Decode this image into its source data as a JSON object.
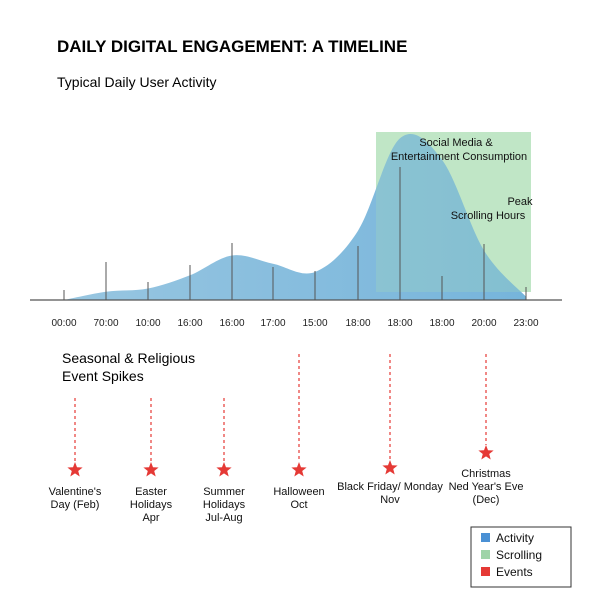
{
  "chart_data": {
    "type": "area",
    "title": "DAILY DIGITAL ENGAGEMENT: A TIMELINE",
    "subtitle": "Typical Daily User Activity",
    "x_tick_labels": [
      "00:00",
      "70:00",
      "10:00",
      "16:00",
      "16:00",
      "17:00",
      "15:00",
      "18:00",
      "18:00",
      "18:00",
      "20:00",
      "23:00"
    ],
    "activity_series": {
      "name": "Activity",
      "values": [
        0.0,
        0.05,
        0.07,
        0.15,
        0.27,
        0.22,
        0.17,
        0.42,
        0.98,
        0.85,
        0.3,
        0.02
      ]
    },
    "scrolling_band": {
      "name": "Scrolling",
      "from_tick_index": 7.5,
      "to_tick_index": 11,
      "annotations": [
        "Social Media &",
        "Entertainment Consumption",
        "Peak",
        "Scrolling Hours"
      ]
    },
    "events_section_title": [
      "Seasonal & Religious",
      "Event Spikes"
    ],
    "events": [
      {
        "label": [
          "Valentine's",
          "Day (Feb)"
        ]
      },
      {
        "label": [
          "Easter",
          "Holidays",
          "Apr"
        ]
      },
      {
        "label": [
          "Summer",
          "Holidays",
          "Jul-Aug"
        ]
      },
      {
        "label": [
          "Halloween",
          "Oct"
        ]
      },
      {
        "label": [
          "Black Friday/ Monday",
          "Nov"
        ]
      },
      {
        "label": [
          "Christmas",
          "Ned Year's Eve",
          "(Dec)"
        ]
      }
    ],
    "legend": {
      "position": "bottom-right",
      "items": [
        {
          "label": "Activity",
          "color": "#4a90d4"
        },
        {
          "label": "Scrolling",
          "color": "#9fd4a8"
        },
        {
          "label": "Events",
          "color": "#e53935"
        }
      ]
    },
    "colors": {
      "activity_fill": "#6aaed8",
      "scrolling_fill": "#b9e3c0",
      "event_color": "#e53935"
    }
  }
}
